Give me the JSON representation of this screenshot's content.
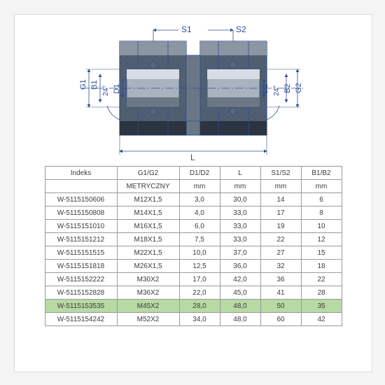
{
  "diagram": {
    "labels": {
      "S1": "S1",
      "S2": "S2",
      "G1": "G1",
      "G2": "G2",
      "B1": "B1",
      "B2": "B2",
      "D1": "D1",
      "D2": "D2",
      "ang": "24°",
      "L": "L"
    },
    "colors": {
      "outline": "#2c4f95",
      "nut_dark": "#2b3440",
      "nut_mid": "#525f6f",
      "nut_light": "#8b96a3",
      "body_light": "#d6dde4",
      "body_mid": "#a9b3bf",
      "body_dark": "#6b7785",
      "ring": "#5b6673",
      "dim_text": "#2c4f95",
      "hatch": "#2c4f95"
    }
  },
  "table": {
    "headers": [
      "Indeks",
      "G1/G2",
      "D1/D2",
      "L",
      "S1/S2",
      "B1/B2"
    ],
    "units": [
      "",
      "METRYCZNY",
      "mm",
      "mm",
      "mm",
      "mm"
    ],
    "rows": [
      [
        "W-5115150606",
        "M12X1,5",
        "3,0",
        "30,0",
        "14",
        "6"
      ],
      [
        "W-5115150808",
        "M14X1,5",
        "4,0",
        "33,0",
        "17",
        "8"
      ],
      [
        "W-5115151010",
        "M16X1,5",
        "6,0",
        "33,0",
        "19",
        "10"
      ],
      [
        "W-5115151212",
        "M18X1,5",
        "7,5",
        "33,0",
        "22",
        "12"
      ],
      [
        "W-5115151515",
        "M22X1,5",
        "10,0",
        "37,0",
        "27",
        "15"
      ],
      [
        "W-5115151818",
        "M26X1,5",
        "12,5",
        "36,0",
        "32",
        "18"
      ],
      [
        "W-5115152222",
        "M30X2",
        "17,0",
        "42,0",
        "36",
        "22"
      ],
      [
        "W-5115152828",
        "M36X2",
        "22,0",
        "45,0",
        "41",
        "28"
      ],
      [
        "W-5115153535",
        "M45X2",
        "28,0",
        "48,0",
        "50",
        "35"
      ],
      [
        "W-5115154242",
        "M52X2",
        "34,0",
        "48,0",
        "60",
        "42"
      ]
    ],
    "highlight_index": 8,
    "highlight_bg": "#b7d9a4"
  }
}
